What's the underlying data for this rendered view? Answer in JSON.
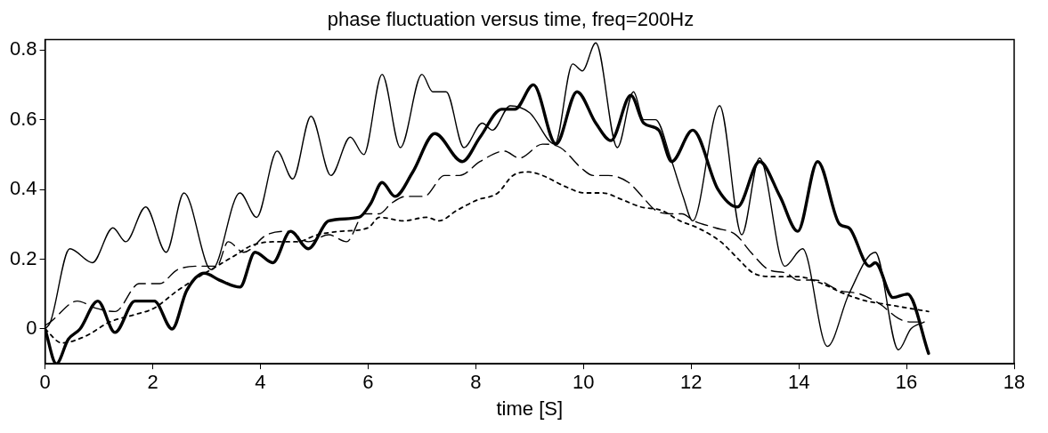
{
  "chart_data": {
    "type": "line",
    "title": "phase fluctuation versus time, freq=200Hz",
    "xlabel": "time [S]",
    "xlim": [
      0,
      18
    ],
    "xticks": [
      0,
      2,
      4,
      6,
      8,
      10,
      12,
      14,
      16,
      18
    ],
    "ylim": [
      -0.1,
      0.83
    ],
    "yticks": [
      0,
      0.2,
      0.4,
      0.6,
      0.8
    ],
    "grid": false,
    "legend": false,
    "marker": "none",
    "series": [
      {
        "color": "#000000",
        "line_style": "solid",
        "x": [
          0,
          0.1,
          0.46,
          0.88,
          1.26,
          1.5,
          1.87,
          2.25,
          2.58,
          3.02,
          3.1,
          3.62,
          3.93,
          4.31,
          4.6,
          4.94,
          5.31,
          5.67,
          5.92,
          6.26,
          6.6,
          7.0,
          7.2,
          7.45,
          7.78,
          8.12,
          8.31,
          8.64,
          9.0,
          9.47,
          9.8,
          9.98,
          10.23,
          10.63,
          10.93,
          11.12,
          11.34,
          11.62,
          11.85,
          12.03,
          12.53,
          12.94,
          13.27,
          13.74,
          14.07,
          14.53,
          14.93,
          15.42,
          15.85,
          16.08,
          16.33
        ],
        "values": [
          0.0,
          0.02,
          0.23,
          0.19,
          0.29,
          0.25,
          0.35,
          0.22,
          0.39,
          0.18,
          0.17,
          0.39,
          0.32,
          0.51,
          0.43,
          0.61,
          0.44,
          0.55,
          0.5,
          0.73,
          0.52,
          0.73,
          0.68,
          0.68,
          0.52,
          0.59,
          0.57,
          0.64,
          0.62,
          0.53,
          0.76,
          0.74,
          0.82,
          0.52,
          0.68,
          0.6,
          0.6,
          0.49,
          0.38,
          0.31,
          0.64,
          0.27,
          0.49,
          0.18,
          0.23,
          -0.05,
          0.1,
          0.22,
          -0.06,
          0.0,
          0.02
        ]
      },
      {
        "color": "#000000",
        "line_style": "solid",
        "x": [
          0,
          0.21,
          0.43,
          0.65,
          0.98,
          1.3,
          1.67,
          2.03,
          2.36,
          2.63,
          2.96,
          3.24,
          3.62,
          3.9,
          4.23,
          4.56,
          4.89,
          5.27,
          5.83,
          6.05,
          6.26,
          6.5,
          6.83,
          7.24,
          7.75,
          8.08,
          8.48,
          8.73,
          9.07,
          9.49,
          9.88,
          10.23,
          10.51,
          10.88,
          11.12,
          11.4,
          11.64,
          12.03,
          12.5,
          12.86,
          13.27,
          13.65,
          13.98,
          14.35,
          14.76,
          14.93,
          15.31,
          15.42,
          15.75,
          16.02,
          16.41
        ],
        "values": [
          0.0,
          -0.1,
          -0.03,
          0.0,
          0.08,
          -0.01,
          0.08,
          0.08,
          0.0,
          0.11,
          0.16,
          0.14,
          0.12,
          0.22,
          0.19,
          0.28,
          0.23,
          0.31,
          0.32,
          0.36,
          0.42,
          0.38,
          0.45,
          0.56,
          0.48,
          0.55,
          0.63,
          0.63,
          0.7,
          0.53,
          0.68,
          0.59,
          0.54,
          0.67,
          0.59,
          0.57,
          0.48,
          0.57,
          0.4,
          0.35,
          0.48,
          0.38,
          0.28,
          0.48,
          0.3,
          0.29,
          0.18,
          0.19,
          0.09,
          0.1,
          -0.07
        ]
      },
      {
        "color": "#000000",
        "line_style": "dashed",
        "x": [
          0,
          0.1,
          0.6,
          0.93,
          1.3,
          1.75,
          2.13,
          2.46,
          2.91,
          3.19,
          3.4,
          3.69,
          4.12,
          4.51,
          4.89,
          5.27,
          5.6,
          5.93,
          6.21,
          6.43,
          6.7,
          7.04,
          7.42,
          7.7,
          8.08,
          8.53,
          8.81,
          9.24,
          9.57,
          9.97,
          10.18,
          10.46,
          10.84,
          11.09,
          11.34,
          11.62,
          11.83,
          12.05,
          12.45,
          12.83,
          13.11,
          13.44,
          13.77,
          13.98,
          14.31,
          14.76,
          15.14,
          15.52,
          15.85,
          16.08,
          16.35
        ],
        "values": [
          0.01,
          0.02,
          0.08,
          0.06,
          0.05,
          0.13,
          0.13,
          0.17,
          0.18,
          0.18,
          0.25,
          0.22,
          0.27,
          0.28,
          0.25,
          0.27,
          0.25,
          0.33,
          0.33,
          0.36,
          0.38,
          0.38,
          0.44,
          0.44,
          0.48,
          0.51,
          0.49,
          0.53,
          0.52,
          0.46,
          0.44,
          0.44,
          0.42,
          0.38,
          0.34,
          0.33,
          0.33,
          0.31,
          0.29,
          0.27,
          0.22,
          0.17,
          0.16,
          0.14,
          0.14,
          0.11,
          0.1,
          0.07,
          0.03,
          0.02,
          0.02
        ]
      },
      {
        "color": "#000000",
        "line_style": "dotted",
        "x": [
          0,
          0.31,
          0.76,
          1.2,
          1.64,
          2.03,
          2.46,
          2.86,
          3.19,
          3.52,
          3.85,
          4.28,
          4.68,
          5.06,
          5.5,
          6.0,
          6.21,
          6.66,
          7.09,
          7.32,
          7.65,
          8.03,
          8.41,
          8.69,
          8.99,
          9.24,
          9.64,
          10.02,
          10.35,
          10.73,
          11.06,
          11.45,
          11.79,
          12.12,
          12.55,
          12.88,
          13.16,
          13.54,
          13.98,
          14.43,
          14.86,
          15.26,
          15.64,
          16.02,
          16.41
        ],
        "values": [
          0.0,
          -0.04,
          -0.02,
          0.02,
          0.04,
          0.06,
          0.11,
          0.15,
          0.18,
          0.21,
          0.24,
          0.25,
          0.25,
          0.27,
          0.28,
          0.29,
          0.32,
          0.31,
          0.32,
          0.31,
          0.34,
          0.37,
          0.39,
          0.44,
          0.45,
          0.44,
          0.41,
          0.39,
          0.39,
          0.37,
          0.35,
          0.34,
          0.31,
          0.29,
          0.25,
          0.2,
          0.16,
          0.15,
          0.15,
          0.13,
          0.1,
          0.08,
          0.07,
          0.06,
          0.05
        ]
      }
    ]
  }
}
